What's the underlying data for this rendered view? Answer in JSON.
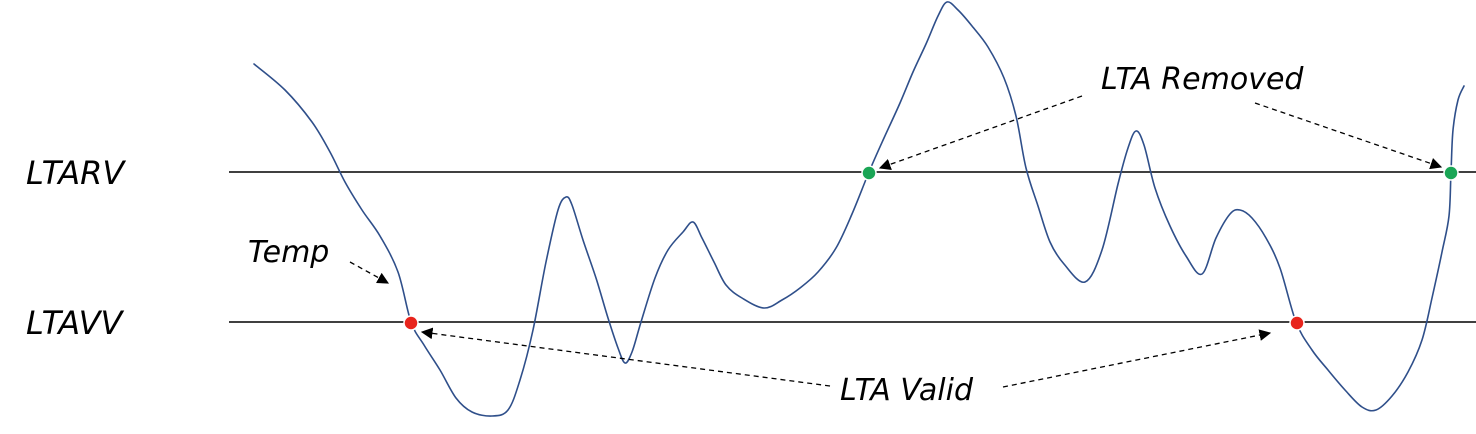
{
  "threshold_labels": {
    "upper": "LTARV",
    "lower": "LTAVV"
  },
  "annotations": {
    "temp": "Temp",
    "removed": "LTA Removed",
    "valid": "LTA Valid"
  },
  "markers": {
    "removed_color": "#1aa555",
    "valid_color": "#e8241c"
  },
  "colors": {
    "signal": "#2f4f8a",
    "threshold": "#000000"
  }
}
